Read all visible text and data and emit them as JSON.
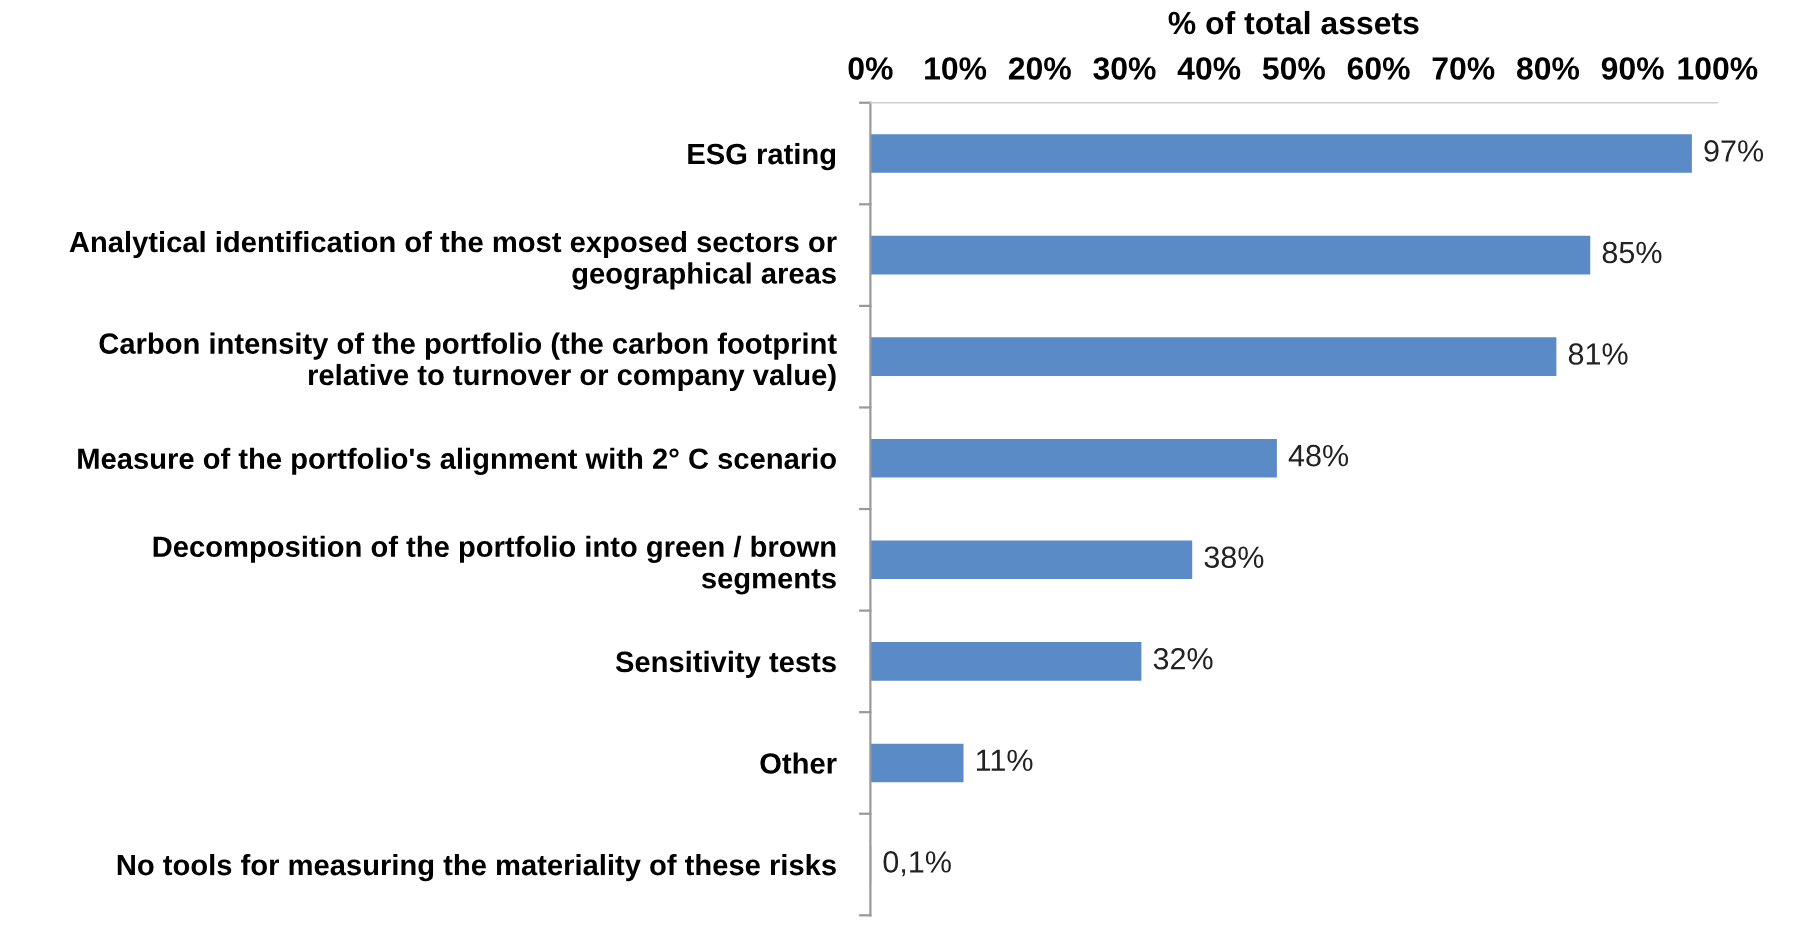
{
  "chart_data": {
    "type": "bar",
    "orientation": "horizontal",
    "xlabel": "% of total assets",
    "categories": [
      "ESG rating",
      "Analytical identification of the most exposed sectors or\ngeographical areas",
      "Carbon intensity of the portfolio (the carbon footprint\nrelative to turnover or company value)",
      "Measure of the portfolio's alignment with 2° C scenario",
      "Decomposition of the portfolio into green / brown\nsegments",
      "Sensitivity tests",
      "Other",
      "No tools for measuring the materiality of these risks"
    ],
    "values": [
      97,
      85,
      81,
      48,
      38,
      32,
      11,
      0.1
    ],
    "value_labels": [
      "97%",
      "85%",
      "81%",
      "48%",
      "38%",
      "32%",
      "11%",
      "0,1%"
    ],
    "color": "#5b8bc6",
    "xlim": [
      0,
      100
    ],
    "xticks": [
      {
        "value": 0,
        "label": "0%"
      },
      {
        "value": 10,
        "label": "10%"
      },
      {
        "value": 20,
        "label": "20%"
      },
      {
        "value": 30,
        "label": "30%"
      },
      {
        "value": 40,
        "label": "40%"
      },
      {
        "value": 50,
        "label": "50%"
      },
      {
        "value": 60,
        "label": "60%"
      },
      {
        "value": 70,
        "label": "70%"
      },
      {
        "value": 80,
        "label": "80%"
      },
      {
        "value": 90,
        "label": "90%"
      },
      {
        "value": 100,
        "label": "100%"
      }
    ],
    "grid": false,
    "legend": false
  }
}
